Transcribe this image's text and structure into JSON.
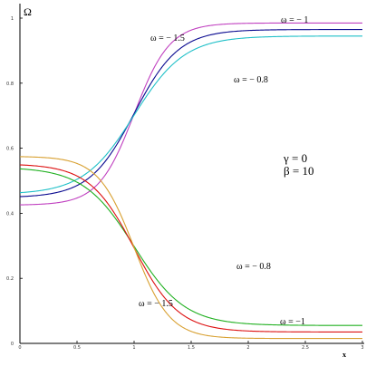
{
  "chart_data": {
    "type": "line",
    "xlabel": "x",
    "ylabel": "Ω",
    "xlim": [
      0,
      3
    ],
    "ylim": [
      0,
      1
    ],
    "x_ticks": [
      "0",
      "0.5",
      "1",
      "1.5",
      "2",
      "2.5",
      "3"
    ],
    "y_ticks": [
      "0",
      "0.2",
      "0.4",
      "0.6",
      "0.8",
      "1"
    ],
    "parameters": [
      "γ = 0",
      "β = 10"
    ],
    "series": [
      {
        "name": "ω = − 1.5",
        "color": "#c040c0",
        "left": 0.425,
        "right": 0.985,
        "k": 3.2
      },
      {
        "name": "ω = − 1",
        "color": "#0a0a90",
        "left": 0.448,
        "right": 0.965,
        "k": 2.55
      },
      {
        "name": "ω = − 0.8",
        "color": "#20c0c8",
        "left": 0.458,
        "right": 0.945,
        "k": 2.25
      },
      {
        "name": "ω = − 0.8",
        "color": "#20b020",
        "left": 0.542,
        "right": 0.055,
        "k": 2.25
      },
      {
        "name": "ω = − 1",
        "color": "#dd1010",
        "left": 0.552,
        "right": 0.035,
        "k": 2.55
      },
      {
        "name": "ω = − 1.5",
        "color": "#d8a030",
        "left": 0.575,
        "right": 0.015,
        "k": 3.2
      }
    ],
    "annotations": [
      {
        "text": "ω = − 1.5",
        "series": 0
      },
      {
        "text": "ω = − 1",
        "series": 1
      },
      {
        "text": "ω = − 0.8",
        "series": 2
      },
      {
        "text": "ω = − 0.8",
        "series": 3
      },
      {
        "text": "ω = −1",
        "series": 4
      },
      {
        "text": "ω = − 1.5",
        "series": 5
      }
    ]
  }
}
